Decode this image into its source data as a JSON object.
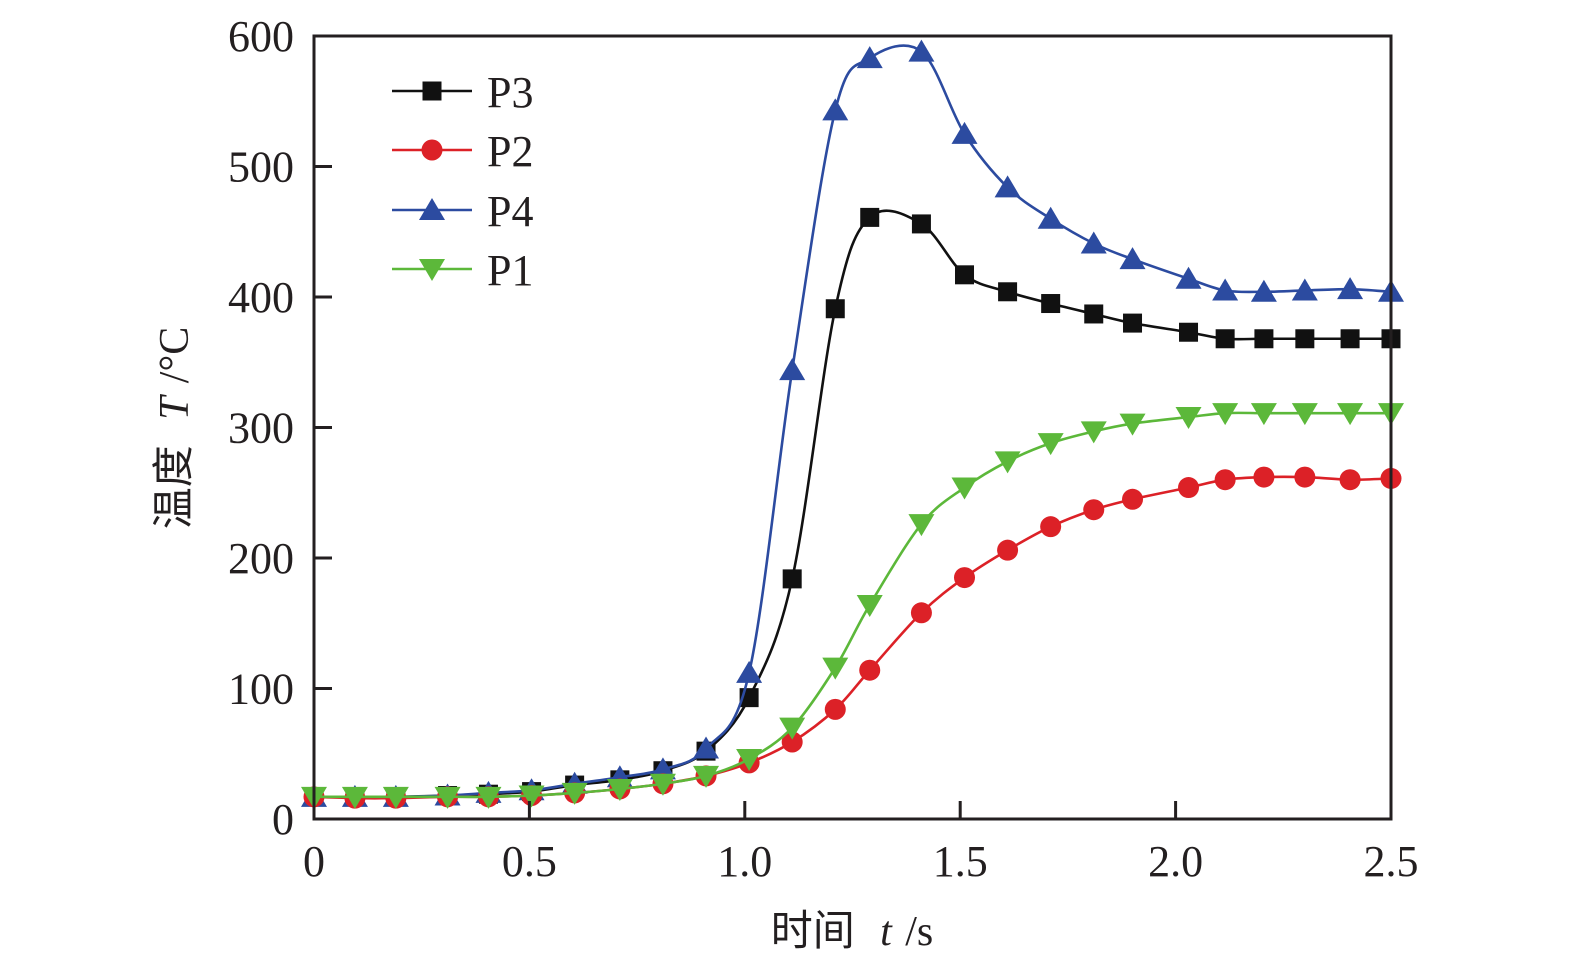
{
  "chart_data": {
    "type": "line",
    "title": "",
    "xlabel": {
      "zh": "时间",
      "var": "t",
      "unit": "/s"
    },
    "ylabel": {
      "zh": "温度",
      "var": "T",
      "unit": "/°C"
    },
    "xlim": [
      0,
      2.5
    ],
    "ylim": [
      0,
      600
    ],
    "xticks": [
      "0",
      "0.5",
      "1.0",
      "1.5",
      "2.0",
      "2.5"
    ],
    "xtick_values": [
      0,
      0.5,
      1.0,
      1.5,
      2.0,
      2.5
    ],
    "yticks": [
      "0",
      "100",
      "200",
      "300",
      "400",
      "500",
      "600"
    ],
    "ytick_values": [
      0,
      100,
      200,
      300,
      400,
      500,
      600
    ],
    "grid": false,
    "legend_position": "top-left",
    "x": [
      0,
      0.095,
      0.19,
      0.31,
      0.405,
      0.505,
      0.605,
      0.71,
      0.81,
      0.91,
      1.01,
      1.11,
      1.21,
      1.29,
      1.41,
      1.51,
      1.61,
      1.71,
      1.81,
      1.9,
      2.03,
      2.115,
      2.205,
      2.3,
      2.405,
      2.5
    ],
    "series": [
      {
        "name": "P3",
        "color": "#111111",
        "marker": "square",
        "values": [
          17,
          17,
          17,
          18,
          19,
          21,
          26,
          30,
          37,
          52,
          93,
          184,
          391,
          461,
          456,
          417,
          404,
          395,
          387,
          380,
          373,
          368,
          368,
          368,
          368,
          368
        ]
      },
      {
        "name": "P2",
        "color": "#dc2127",
        "marker": "circle",
        "values": [
          17,
          16,
          16,
          17,
          17,
          18,
          20,
          23,
          27,
          33,
          43,
          59,
          84,
          114,
          158,
          185,
          206,
          224,
          237,
          245,
          254,
          260,
          262,
          262,
          260,
          261
        ]
      },
      {
        "name": "P4",
        "color": "#2c4ba0",
        "marker": "triangle-up",
        "values": [
          17,
          17,
          17,
          18,
          20,
          22,
          27,
          32,
          38,
          54,
          112,
          344,
          543,
          583,
          588,
          525,
          484,
          460,
          441,
          429,
          414,
          405,
          404,
          405,
          406,
          404
        ]
      },
      {
        "name": "P1",
        "color": "#5cb83a",
        "marker": "triangle-down",
        "values": [
          17,
          17,
          17,
          17,
          17,
          18,
          20,
          23,
          27,
          33,
          46,
          70,
          116,
          164,
          226,
          254,
          274,
          288,
          297,
          303,
          308,
          311,
          311,
          311,
          311,
          311
        ]
      }
    ]
  }
}
